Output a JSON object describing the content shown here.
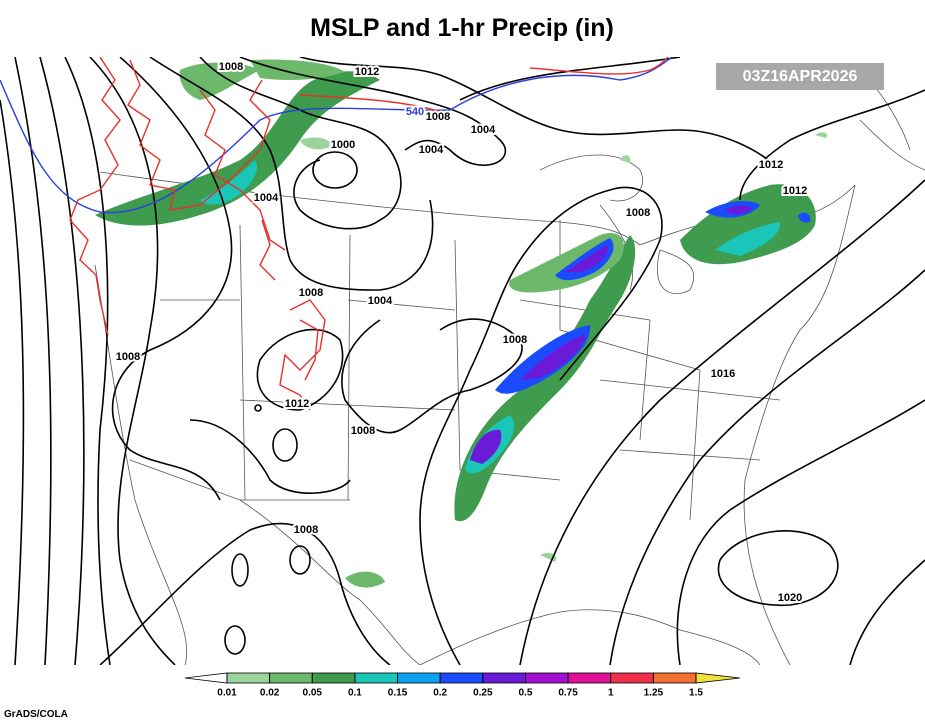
{
  "header": {
    "title": "MSLP and 1-hr Precip (in)",
    "valid_time": "03Z16APR2026"
  },
  "map": {
    "contour_labels": [
      1008,
      1012,
      1008,
      540,
      1004,
      1000,
      1004,
      1004,
      1008,
      1012,
      1012,
      1008,
      1004,
      1008,
      1008,
      1016,
      1012,
      1008,
      1008,
      1020
    ]
  },
  "colorbar": {
    "ticks": [
      0.01,
      0.02,
      0.05,
      0.1,
      0.15,
      0.2,
      0.25,
      0.5,
      0.75,
      1,
      1.25,
      1.5
    ],
    "colors": [
      "#ffffff",
      "#9ad49a",
      "#6cb96c",
      "#3f9b4d",
      "#19c6b8",
      "#0ba0f0",
      "#1a4bff",
      "#6a1bd8",
      "#a010d0",
      "#e0109a",
      "#f0304a",
      "#f07030",
      "#f0e040"
    ]
  },
  "footer": {
    "credit": "GrADS/COLA"
  }
}
